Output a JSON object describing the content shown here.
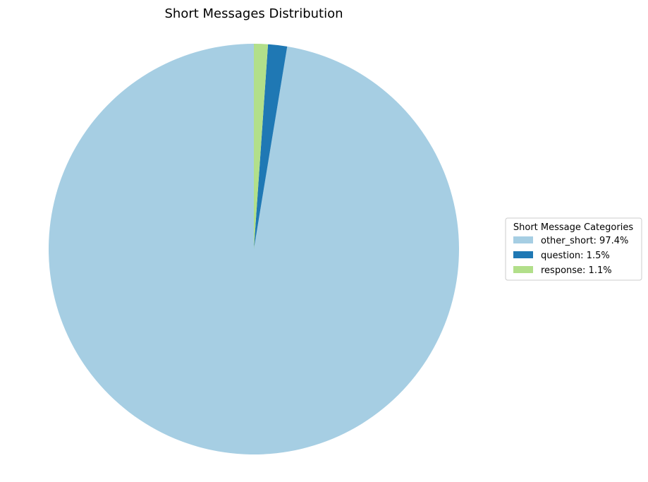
{
  "chart_data": {
    "type": "pie",
    "title": "Short Messages Distribution",
    "start_angle_deg": 90,
    "direction": "counterclockwise",
    "slices": [
      {
        "label": "other_short",
        "value": 97.4,
        "color": "#a6cee3"
      },
      {
        "label": "question",
        "value": 1.5,
        "color": "#1f78b4"
      },
      {
        "label": "response",
        "value": 1.1,
        "color": "#b2df8a"
      }
    ],
    "legend": {
      "title": "Short Message Categories",
      "placement": "center-right",
      "entries": [
        "other_short: 97.4%",
        "question: 1.5%",
        "response: 1.1%"
      ]
    }
  }
}
